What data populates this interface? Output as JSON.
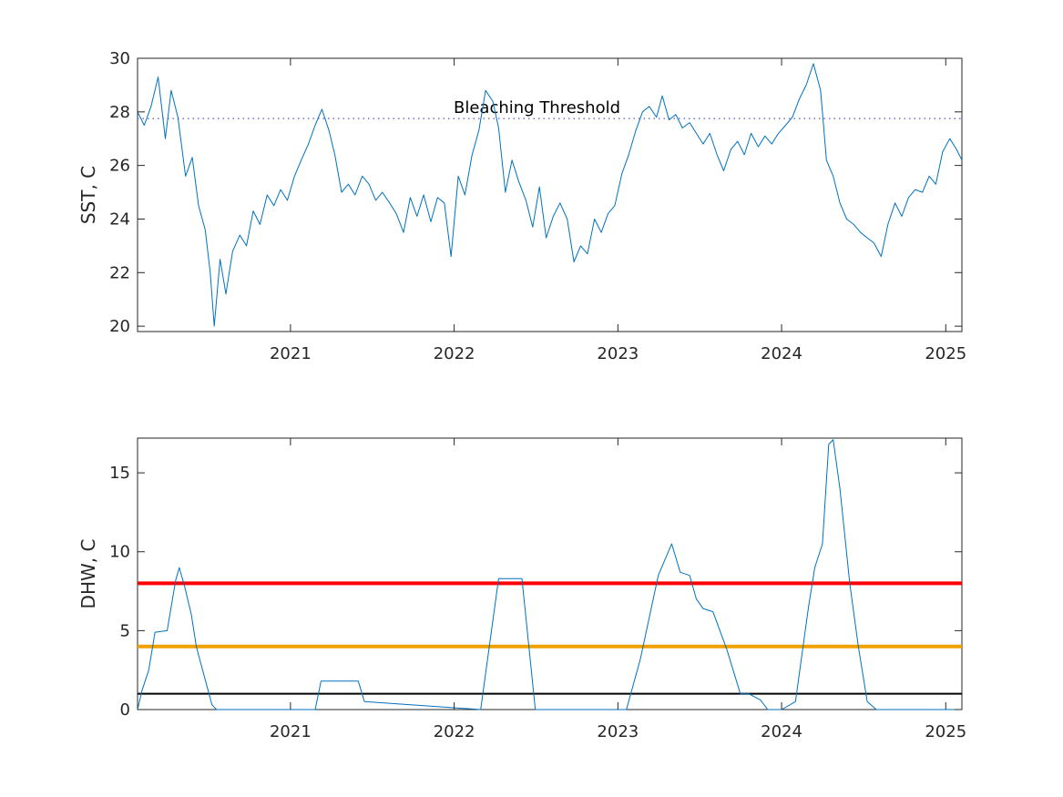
{
  "chart_data": [
    {
      "type": "line",
      "xlabel": "",
      "ylabel": "SST, C",
      "xlim": [
        "2020-01-26",
        "2025-02-06"
      ],
      "ylim": [
        19.8,
        30
      ],
      "x_ticks": [
        "2021",
        "2022",
        "2023",
        "2024",
        "2025"
      ],
      "y_ticks": [
        "20",
        "22",
        "24",
        "26",
        "28",
        "30"
      ],
      "grid": false,
      "series": [
        {
          "color": "#0072BD",
          "x": [
            "2020-01-26",
            "2020-02-10",
            "2020-02-25",
            "2020-03-12",
            "2020-03-28",
            "2020-04-10",
            "2020-04-25",
            "2020-05-12",
            "2020-05-27",
            "2020-06-10",
            "2020-06-25",
            "2020-07-06",
            "2020-07-15",
            "2020-07-28",
            "2020-08-10",
            "2020-08-25",
            "2020-09-10",
            "2020-09-25",
            "2020-10-10",
            "2020-10-25",
            "2020-11-10",
            "2020-11-25",
            "2020-12-10",
            "2020-12-25",
            "2021-01-10",
            "2021-01-25",
            "2021-02-10",
            "2021-02-25",
            "2021-03-12",
            "2021-03-28",
            "2021-04-10",
            "2021-04-25",
            "2021-05-10",
            "2021-05-25",
            "2021-06-10",
            "2021-06-25",
            "2021-07-10",
            "2021-07-25",
            "2021-08-10",
            "2021-08-25",
            "2021-09-10",
            "2021-09-25",
            "2021-10-10",
            "2021-10-25",
            "2021-11-10",
            "2021-11-25",
            "2021-12-10",
            "2021-12-25",
            "2022-01-10",
            "2022-01-25",
            "2022-02-10",
            "2022-02-25",
            "2022-03-12",
            "2022-03-28",
            "2022-04-10",
            "2022-04-25",
            "2022-05-10",
            "2022-05-25",
            "2022-06-10",
            "2022-06-25",
            "2022-07-10",
            "2022-07-25",
            "2022-08-10",
            "2022-08-25",
            "2022-09-10",
            "2022-09-25",
            "2022-10-10",
            "2022-10-25",
            "2022-11-10",
            "2022-11-25",
            "2022-12-10",
            "2022-12-25",
            "2023-01-10",
            "2023-01-25",
            "2023-02-10",
            "2023-02-25",
            "2023-03-12",
            "2023-03-28",
            "2023-04-10",
            "2023-04-25",
            "2023-05-10",
            "2023-05-25",
            "2023-06-10",
            "2023-06-25",
            "2023-07-10",
            "2023-07-25",
            "2023-08-10",
            "2023-08-25",
            "2023-09-10",
            "2023-09-25",
            "2023-10-10",
            "2023-10-25",
            "2023-11-10",
            "2023-11-25",
            "2023-12-10",
            "2023-12-25",
            "2024-01-10",
            "2024-01-25",
            "2024-02-10",
            "2024-02-25",
            "2024-03-12",
            "2024-03-28",
            "2024-04-10",
            "2024-04-25",
            "2024-05-10",
            "2024-05-25",
            "2024-06-10",
            "2024-06-25",
            "2024-07-10",
            "2024-07-25",
            "2024-08-10",
            "2024-08-25",
            "2024-09-10",
            "2024-09-25",
            "2024-10-10",
            "2024-10-25",
            "2024-11-10",
            "2024-11-25",
            "2024-12-10",
            "2024-12-25",
            "2025-01-10",
            "2025-01-25",
            "2025-02-06"
          ],
          "y": [
            28.0,
            27.5,
            28.2,
            29.3,
            27.0,
            28.8,
            27.8,
            25.6,
            26.3,
            24.5,
            23.6,
            22.0,
            20.0,
            22.5,
            21.2,
            22.8,
            23.4,
            23.0,
            24.3,
            23.8,
            24.9,
            24.5,
            25.1,
            24.7,
            25.6,
            26.2,
            26.8,
            27.5,
            28.1,
            27.3,
            26.4,
            25.0,
            25.3,
            24.9,
            25.6,
            25.3,
            24.7,
            25.0,
            24.6,
            24.2,
            23.5,
            24.8,
            24.1,
            24.9,
            23.9,
            24.8,
            24.6,
            22.6,
            25.6,
            24.9,
            26.4,
            27.3,
            28.8,
            28.4,
            27.4,
            25.0,
            26.2,
            25.4,
            24.7,
            23.7,
            25.2,
            23.3,
            24.1,
            24.6,
            24.0,
            22.4,
            23.0,
            22.7,
            24.0,
            23.5,
            24.2,
            24.5,
            25.7,
            26.4,
            27.3,
            28.0,
            28.2,
            27.8,
            28.6,
            27.7,
            27.9,
            27.4,
            27.6,
            27.2,
            26.8,
            27.2,
            26.4,
            25.8,
            26.6,
            26.9,
            26.4,
            27.2,
            26.7,
            27.1,
            26.8,
            27.2,
            27.5,
            27.8,
            28.5,
            29.0,
            29.8,
            28.8,
            26.2,
            25.6,
            24.6,
            24.0,
            23.8,
            23.5,
            23.3,
            23.1,
            22.6,
            23.8,
            24.6,
            24.1,
            24.8,
            25.1,
            25.0,
            25.6,
            25.3,
            26.5,
            27.0,
            26.6,
            26.2
          ]
        }
      ],
      "annotations": [
        {
          "text": "Bleaching Threshold",
          "y": 27.75,
          "color": "#7E7EE0",
          "style": "dotted"
        }
      ]
    },
    {
      "type": "line",
      "xlabel": "",
      "ylabel": "DHW, C",
      "xlim": [
        "2020-01-26",
        "2025-02-06"
      ],
      "ylim": [
        0,
        17.2
      ],
      "x_ticks": [
        "2021",
        "2022",
        "2023",
        "2024",
        "2025"
      ],
      "y_ticks": [
        "0",
        "5",
        "10",
        "15"
      ],
      "grid": false,
      "series": [
        {
          "color": "#0072BD",
          "x": [
            "2020-01-26",
            "2020-02-05",
            "2020-02-20",
            "2020-03-05",
            "2020-04-01",
            "2020-04-20",
            "2020-04-28",
            "2020-05-10",
            "2020-05-25",
            "2020-06-05",
            "2020-07-10",
            "2020-07-20",
            "2021-02-25",
            "2021-03-10",
            "2021-06-01",
            "2021-06-15",
            "2022-03-01",
            "2022-04-10",
            "2022-06-01",
            "2022-07-01",
            "2023-01-20",
            "2023-02-20",
            "2023-04-01",
            "2023-05-01",
            "2023-05-20",
            "2023-06-10",
            "2023-06-25",
            "2023-07-10",
            "2023-08-01",
            "2023-09-01",
            "2023-10-01",
            "2023-10-20",
            "2023-11-15",
            "2023-12-01",
            "2024-01-01",
            "2024-02-01",
            "2024-03-01",
            "2024-03-15",
            "2024-04-01",
            "2024-04-15",
            "2024-04-25",
            "2024-05-10",
            "2024-06-01",
            "2024-06-20",
            "2024-07-10",
            "2024-07-30",
            "2025-02-06"
          ],
          "y": [
            0,
            1.2,
            2.5,
            4.9,
            5.0,
            8.2,
            9.0,
            7.8,
            6.0,
            4.0,
            0.3,
            0,
            0,
            1.8,
            1.8,
            0.5,
            0,
            8.3,
            8.3,
            0,
            0,
            3.2,
            8.5,
            10.5,
            8.7,
            8.5,
            7.0,
            6.4,
            6.2,
            3.8,
            1.0,
            1.0,
            0.6,
            0,
            0,
            0.5,
            6.5,
            9.0,
            10.5,
            16.8,
            17.1,
            14.0,
            8.0,
            4.0,
            0.5,
            0,
            0
          ]
        }
      ],
      "reference_lines": [
        {
          "y": 8,
          "color": "#FF0000"
        },
        {
          "y": 4,
          "color": "#F0A000"
        },
        {
          "y": 1,
          "color": "#000000"
        }
      ]
    }
  ]
}
